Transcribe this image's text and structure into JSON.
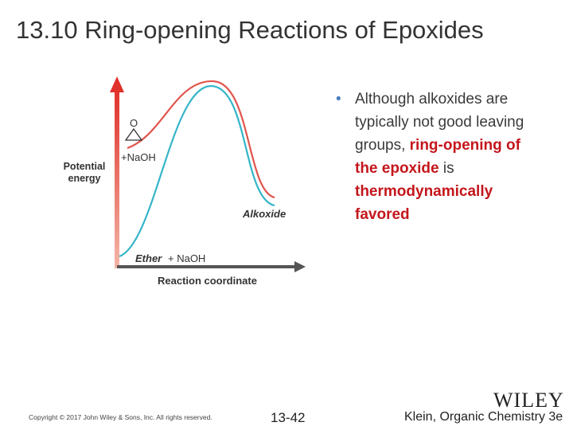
{
  "title": "13.10 Ring-opening Reactions of Epoxides",
  "diagram": {
    "y_axis_label": [
      "Potential",
      "energy"
    ],
    "x_axis_label": "Reaction coordinate",
    "epoxide_atom": "O",
    "reactant_label": "+NaOH",
    "product_label": "Alkoxide",
    "ether_label": [
      "Ether",
      "+ NaOH"
    ]
  },
  "bullet": {
    "lines": [
      [
        {
          "text": "Although alkoxides are"
        }
      ],
      [
        {
          "text": "typically not good leaving"
        }
      ],
      [
        {
          "text": "groups, "
        },
        {
          "text": "ring-opening of",
          "emphasis": true
        }
      ],
      [
        {
          "text": "the epoxide",
          "emphasis": true
        },
        {
          "text": " is"
        }
      ],
      [
        {
          "text": "thermodynamically",
          "emphasis": true
        }
      ],
      [
        {
          "text": "favored",
          "emphasis": true
        }
      ]
    ]
  },
  "footer": {
    "copyright": "Copyright © 2017 John Wiley & Sons, Inc. All rights reserved.",
    "slide_number": "13-42",
    "publisher": "WILEY",
    "citation": "Klein, Organic Chemistry 3e"
  }
}
